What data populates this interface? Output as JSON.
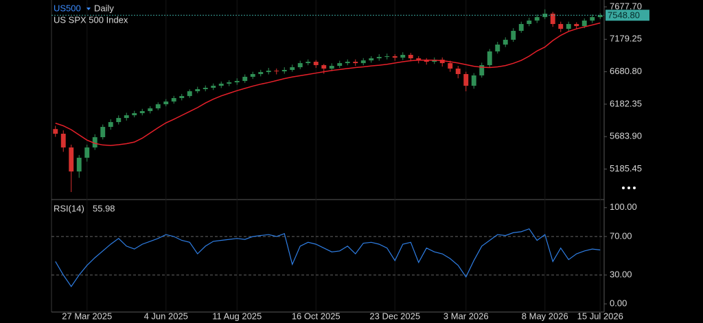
{
  "chart_data": [
    {
      "type": "candlestick",
      "symbol": "US500",
      "interval": "Daily",
      "title": "US SPX 500 Index",
      "categories": [
        null,
        null,
        null,
        null,
        "27 Mar 2025",
        null,
        null,
        null,
        null,
        null,
        null,
        null,
        null,
        null,
        "4 Jun 2025",
        null,
        null,
        null,
        null,
        null,
        null,
        null,
        null,
        "11 Aug 2025",
        null,
        null,
        null,
        null,
        null,
        null,
        null,
        null,
        null,
        "16 Oct 2025",
        null,
        null,
        null,
        null,
        null,
        null,
        null,
        null,
        null,
        "23 Dec 2025",
        null,
        null,
        null,
        null,
        null,
        null,
        null,
        null,
        "3 Mar 2026",
        null,
        null,
        null,
        null,
        null,
        null,
        null,
        null,
        null,
        "8 May 2026",
        null,
        null,
        null,
        null,
        null,
        null,
        "15 Jul 2026"
      ],
      "open": [
        5800,
        5728,
        5517,
        5148,
        5359,
        5517,
        5675,
        5833,
        5907,
        5970,
        6012,
        6044,
        6076,
        6118,
        6181,
        6223,
        6276,
        6307,
        6381,
        6413,
        6434,
        6465,
        6497,
        6518,
        6539,
        6603,
        6645,
        6676,
        6697,
        6687,
        6708,
        6750,
        6813,
        6834,
        6782,
        6729,
        6771,
        6813,
        6834,
        6813,
        6855,
        6887,
        6908,
        6919,
        6897,
        6940,
        6887,
        6855,
        6834,
        6866,
        6813,
        6729,
        6645,
        6465,
        6624,
        6782,
        6993,
        7098,
        7172,
        7309,
        7414,
        7467,
        7520,
        7573,
        7414,
        7340,
        7414,
        7382,
        7467,
        7520
      ],
      "high": [
        5850,
        5780,
        5560,
        5400,
        5560,
        5720,
        5870,
        5950,
        6010,
        6050,
        6080,
        6110,
        6150,
        6210,
        6260,
        6310,
        6340,
        6410,
        6450,
        6470,
        6500,
        6530,
        6550,
        6580,
        6640,
        6680,
        6710,
        6740,
        6730,
        6750,
        6790,
        6850,
        6870,
        6860,
        6800,
        6810,
        6850,
        6870,
        6870,
        6890,
        6920,
        6950,
        6960,
        6950,
        6980,
        6970,
        6920,
        6890,
        6900,
        6900,
        6850,
        6770,
        6680,
        6660,
        6820,
        7030,
        7140,
        7210,
        7350,
        7450,
        7510,
        7560,
        7640,
        7600,
        7450,
        7450,
        7440,
        7500,
        7560,
        7580
      ],
      "low": [
        5680,
        5450,
        4832,
        5050,
        5300,
        5480,
        5640,
        5790,
        5870,
        5930,
        5980,
        6010,
        6040,
        6090,
        6150,
        6190,
        6240,
        6280,
        6350,
        6380,
        6400,
        6430,
        6460,
        6480,
        6510,
        6570,
        6610,
        6640,
        6640,
        6650,
        6680,
        6720,
        6780,
        6740,
        6650,
        6690,
        6740,
        6780,
        6770,
        6780,
        6820,
        6850,
        6870,
        6850,
        6860,
        6840,
        6810,
        6790,
        6800,
        6760,
        6680,
        6580,
        6380,
        6420,
        6590,
        6750,
        6960,
        7060,
        7140,
        7280,
        7380,
        7430,
        7490,
        7370,
        7290,
        7300,
        7340,
        7350,
        7430,
        7490
      ],
      "close": [
        5728,
        5517,
        5148,
        5359,
        5517,
        5675,
        5833,
        5907,
        5970,
        6012,
        6044,
        6076,
        6118,
        6181,
        6223,
        6276,
        6307,
        6381,
        6413,
        6434,
        6465,
        6497,
        6518,
        6539,
        6603,
        6645,
        6676,
        6697,
        6687,
        6708,
        6750,
        6813,
        6834,
        6782,
        6729,
        6771,
        6813,
        6834,
        6813,
        6855,
        6887,
        6908,
        6919,
        6897,
        6940,
        6887,
        6855,
        6834,
        6866,
        6813,
        6729,
        6645,
        6465,
        6624,
        6782,
        6993,
        7098,
        7172,
        7309,
        7414,
        7467,
        7520,
        7573,
        7414,
        7340,
        7414,
        7382,
        7467,
        7520,
        7549
      ],
      "up_color": "#2f8f55",
      "down_color": "#d8312f",
      "moving_average": {
        "color": "#e8202a",
        "values": [
          5890,
          5850,
          5790,
          5710,
          5630,
          5580,
          5555,
          5548,
          5560,
          5575,
          5600,
          5660,
          5740,
          5820,
          5895,
          5950,
          6010,
          6070,
          6130,
          6200,
          6260,
          6310,
          6350,
          6390,
          6425,
          6460,
          6490,
          6515,
          6545,
          6575,
          6600,
          6620,
          6640,
          6660,
          6680,
          6700,
          6715,
          6730,
          6745,
          6755,
          6770,
          6780,
          6795,
          6815,
          6835,
          6850,
          6858,
          6860,
          6858,
          6850,
          6835,
          6815,
          6790,
          6765,
          6750,
          6745,
          6755,
          6775,
          6810,
          6855,
          6920,
          7000,
          7060,
          7160,
          7240,
          7300,
          7340,
          7370,
          7400,
          7430
        ]
      },
      "last_price": {
        "value": 7548.8,
        "label": "7548.80"
      },
      "last_price_color": "#3aa9a0",
      "ylim": [
        4727,
        7783
      ],
      "yticks": [
        {
          "value": 7677.7,
          "label": "7677.70"
        },
        7179.25,
        {
          "value": 6680.8,
          "label": "6680.80"
        },
        6182.35,
        {
          "value": 5683.9,
          "label": "5683.90"
        },
        5185.45
      ]
    },
    {
      "type": "line",
      "title": "RSI(14)",
      "last_value": 55.98,
      "color": "#2f7fe6",
      "values": [
        44,
        30,
        18,
        30,
        40,
        48,
        55,
        62,
        68,
        60,
        57,
        62,
        65,
        68,
        72,
        70,
        66,
        64,
        52,
        60,
        65,
        66,
        67,
        68,
        67,
        70,
        71,
        72,
        70,
        73,
        41,
        60,
        64,
        62,
        58,
        54,
        55,
        60,
        52,
        63,
        64,
        62,
        58,
        45,
        62,
        64,
        43,
        58,
        54,
        52,
        47,
        40,
        28,
        45,
        60,
        66,
        72,
        71,
        74,
        75,
        78,
        66,
        72,
        44,
        58,
        46,
        52,
        55,
        57,
        56
      ],
      "levels": [
        70,
        30
      ],
      "ylim": [
        -8.5,
        107.7
      ],
      "yticks": [
        {
          "value": 100,
          "label": "100.00"
        },
        {
          "value": 70,
          "label": "70.00"
        },
        {
          "value": 30,
          "label": "30.00"
        },
        {
          "value": 0,
          "label": "0.00"
        }
      ]
    }
  ]
}
